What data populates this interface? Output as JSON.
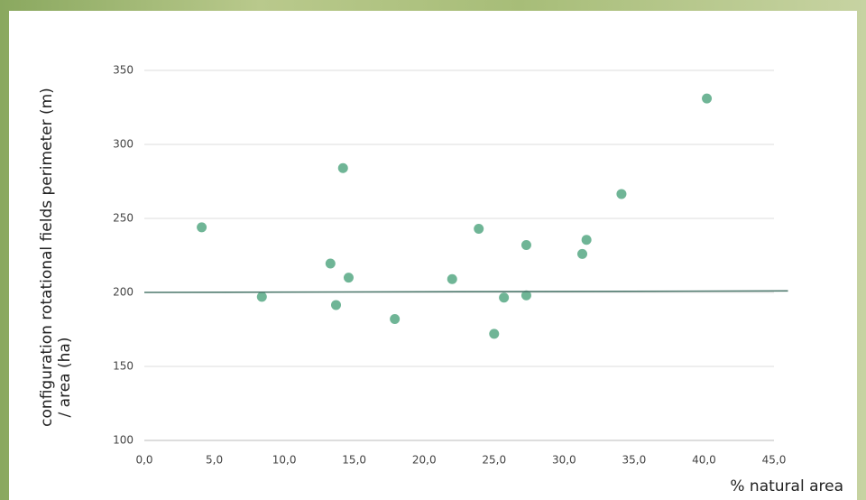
{
  "chart_data": {
    "type": "scatter",
    "xlabel": "% natural area",
    "ylabel": [
      "configuration rotational fields perimeter (m)",
      "/ area (ha)"
    ],
    "x": [
      4.1,
      8.4,
      13.3,
      13.7,
      14.2,
      14.6,
      17.9,
      22.0,
      23.9,
      25.0,
      25.7,
      27.3,
      27.3,
      31.3,
      31.6,
      34.1,
      40.2
    ],
    "values": [
      244,
      197,
      219.5,
      191.5,
      284,
      210,
      182,
      209,
      243,
      172,
      196.5,
      198,
      232,
      226,
      235.5,
      266.5,
      331
    ],
    "color": "#6fb596",
    "trendline": {
      "x": [
        0,
        46
      ],
      "values": [
        200,
        201
      ],
      "color": "#4f7a6e"
    },
    "xlim": [
      0,
      45
    ],
    "ylim": [
      100,
      350
    ],
    "xticks": [
      {
        "value": 0,
        "label": "0,0"
      },
      {
        "value": 5,
        "label": "5,0"
      },
      {
        "value": 10,
        "label": "10,0"
      },
      {
        "value": 15,
        "label": "15,0"
      },
      {
        "value": 20,
        "label": "20,0"
      },
      {
        "value": 25,
        "label": "25,0"
      },
      {
        "value": 30,
        "label": "30,0"
      },
      {
        "value": 35,
        "label": "35,0"
      },
      {
        "value": 40,
        "label": "40,0"
      },
      {
        "value": 45,
        "label": "45,0"
      }
    ],
    "yticks": [
      100,
      150,
      200,
      250,
      300,
      350
    ],
    "grid": true
  }
}
